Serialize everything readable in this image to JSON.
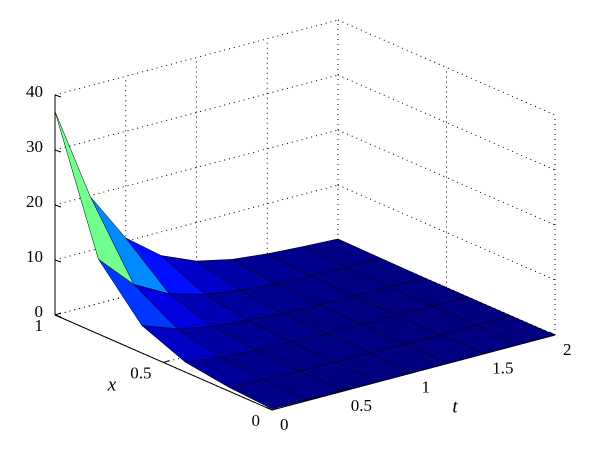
{
  "chart_data": {
    "type": "surface",
    "xlabel": "x",
    "tlabel": "t",
    "x": [
      0,
      0.2,
      0.4,
      0.6,
      0.8,
      1
    ],
    "t": [
      0,
      0.25,
      0.5,
      0.75,
      1,
      1.25,
      1.5,
      1.75,
      2
    ],
    "z": [
      [
        0.2,
        0.1,
        0.1,
        0,
        0,
        0,
        0,
        0,
        0
      ],
      [
        0.7,
        0.4,
        0.2,
        0.1,
        0.1,
        0,
        0,
        0,
        0
      ],
      [
        1.8,
        1.0,
        0.5,
        0.3,
        0.2,
        0.1,
        0,
        0,
        0
      ],
      [
        5.0,
        2.7,
        1.4,
        0.8,
        0.4,
        0.2,
        0.1,
        0.1,
        0
      ],
      [
        13.6,
        7.3,
        3.9,
        2.1,
        1.1,
        0.6,
        0.3,
        0.2,
        0.1
      ],
      [
        37,
        19.8,
        10.6,
        5.7,
        3.0,
        1.6,
        0.9,
        0.5,
        0.2
      ]
    ],
    "xlim": [
      0,
      1
    ],
    "tlim": [
      0,
      2
    ],
    "zlim": [
      0,
      40
    ],
    "xticks": [
      0,
      0.5,
      1
    ],
    "tticks": [
      0,
      0.5,
      1,
      1.5,
      2
    ],
    "zticks": [
      0,
      10,
      20,
      30,
      40
    ],
    "colormap": "jet",
    "grid": true
  }
}
